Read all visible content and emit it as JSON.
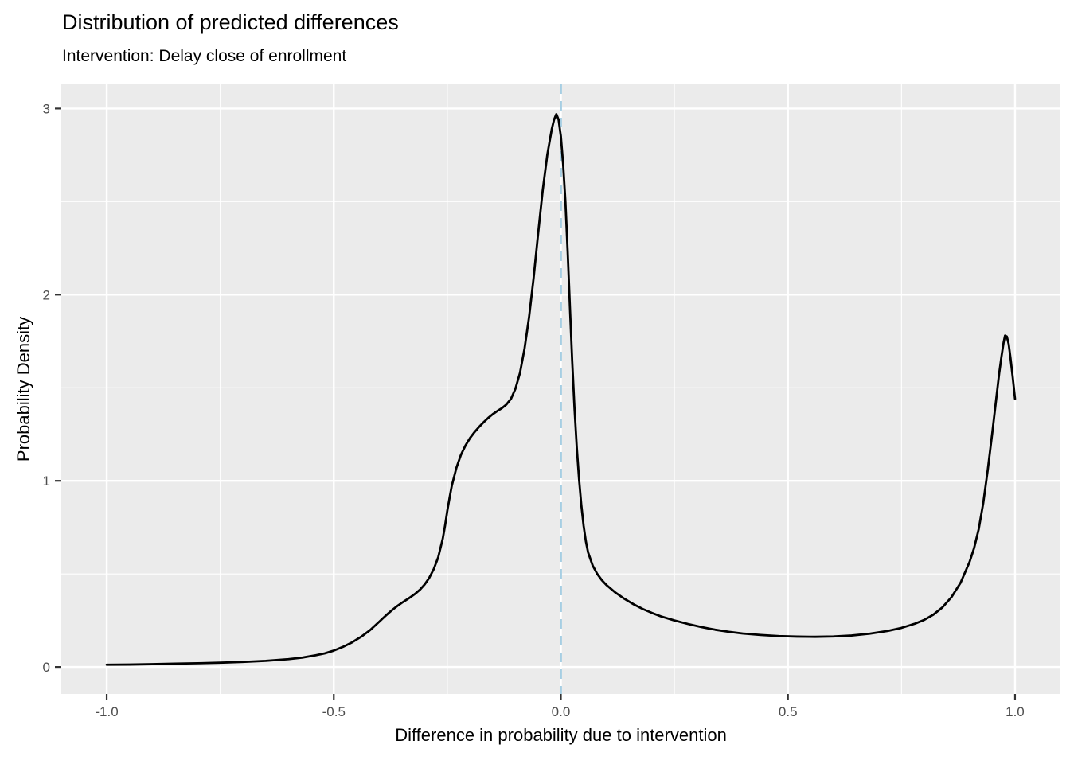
{
  "title": "Distribution of predicted differences",
  "subtitle": "Intervention: Delay close of enrollment",
  "colors": {
    "background": "#FFFFFF",
    "panel_bg": "#EBEBEB",
    "grid": "#FFFFFF",
    "curve": "#000000",
    "vline": "#A6CEE3",
    "tick_label": "#4D4D4D",
    "tick_mark": "#333333",
    "text": "#000000"
  },
  "chart_data": {
    "type": "line",
    "title": "Distribution of predicted differences",
    "subtitle": "Intervention: Delay close of enrollment",
    "xlabel": "Difference in probability due to intervention",
    "ylabel": "Probability Density",
    "xlim": [
      -1.1,
      1.1
    ],
    "ylim": [
      -0.145,
      3.13
    ],
    "x_ticks": [
      -1.0,
      -0.5,
      0.0,
      0.5,
      1.0
    ],
    "x_tick_labels": [
      "-1.0",
      "-0.5",
      "0.0",
      "0.5",
      "1.0"
    ],
    "y_ticks": [
      0,
      1,
      2,
      3
    ],
    "y_tick_labels": [
      "0",
      "1",
      "2",
      "3"
    ],
    "x_minor_gridlines": [
      -0.75,
      -0.25,
      0.25,
      0.75
    ],
    "y_minor_gridlines": [
      0.5,
      1.5,
      2.5
    ],
    "grid": true,
    "legend_position": "none",
    "reference_line": {
      "x": 0.0,
      "style": "dashed",
      "color": "#A6CEE3"
    },
    "series": [
      {
        "name": "predicted-difference-density",
        "color": "#000000",
        "points": [
          [
            -1.0,
            0.012
          ],
          [
            -0.95,
            0.013
          ],
          [
            -0.9,
            0.015
          ],
          [
            -0.85,
            0.018
          ],
          [
            -0.8,
            0.02
          ],
          [
            -0.75,
            0.023
          ],
          [
            -0.7,
            0.027
          ],
          [
            -0.65,
            0.033
          ],
          [
            -0.6,
            0.042
          ],
          [
            -0.57,
            0.05
          ],
          [
            -0.54,
            0.063
          ],
          [
            -0.52,
            0.073
          ],
          [
            -0.5,
            0.088
          ],
          [
            -0.48,
            0.108
          ],
          [
            -0.46,
            0.132
          ],
          [
            -0.44,
            0.162
          ],
          [
            -0.42,
            0.198
          ],
          [
            -0.4,
            0.243
          ],
          [
            -0.39,
            0.266
          ],
          [
            -0.38,
            0.288
          ],
          [
            -0.37,
            0.309
          ],
          [
            -0.36,
            0.328
          ],
          [
            -0.35,
            0.345
          ],
          [
            -0.34,
            0.361
          ],
          [
            -0.33,
            0.377
          ],
          [
            -0.32,
            0.395
          ],
          [
            -0.31,
            0.416
          ],
          [
            -0.3,
            0.443
          ],
          [
            -0.29,
            0.478
          ],
          [
            -0.28,
            0.525
          ],
          [
            -0.27,
            0.59
          ],
          [
            -0.26,
            0.69
          ],
          [
            -0.255,
            0.76
          ],
          [
            -0.25,
            0.84
          ],
          [
            -0.245,
            0.91
          ],
          [
            -0.24,
            0.975
          ],
          [
            -0.23,
            1.07
          ],
          [
            -0.22,
            1.14
          ],
          [
            -0.21,
            1.19
          ],
          [
            -0.2,
            1.23
          ],
          [
            -0.19,
            1.262
          ],
          [
            -0.18,
            1.29
          ],
          [
            -0.17,
            1.315
          ],
          [
            -0.16,
            1.338
          ],
          [
            -0.15,
            1.358
          ],
          [
            -0.14,
            1.375
          ],
          [
            -0.13,
            1.39
          ],
          [
            -0.12,
            1.41
          ],
          [
            -0.11,
            1.44
          ],
          [
            -0.1,
            1.495
          ],
          [
            -0.09,
            1.58
          ],
          [
            -0.08,
            1.71
          ],
          [
            -0.07,
            1.88
          ],
          [
            -0.06,
            2.09
          ],
          [
            -0.05,
            2.33
          ],
          [
            -0.04,
            2.56
          ],
          [
            -0.03,
            2.75
          ],
          [
            -0.02,
            2.89
          ],
          [
            -0.015,
            2.94
          ],
          [
            -0.01,
            2.97
          ],
          [
            -0.005,
            2.94
          ],
          [
            0.0,
            2.85
          ],
          [
            0.005,
            2.7
          ],
          [
            0.01,
            2.5
          ],
          [
            0.015,
            2.23
          ],
          [
            0.02,
            1.93
          ],
          [
            0.025,
            1.64
          ],
          [
            0.03,
            1.39
          ],
          [
            0.035,
            1.18
          ],
          [
            0.04,
            1.01
          ],
          [
            0.045,
            0.87
          ],
          [
            0.05,
            0.76
          ],
          [
            0.055,
            0.675
          ],
          [
            0.06,
            0.615
          ],
          [
            0.07,
            0.545
          ],
          [
            0.08,
            0.5
          ],
          [
            0.09,
            0.467
          ],
          [
            0.1,
            0.441
          ],
          [
            0.12,
            0.4
          ],
          [
            0.14,
            0.366
          ],
          [
            0.16,
            0.337
          ],
          [
            0.18,
            0.312
          ],
          [
            0.2,
            0.291
          ],
          [
            0.22,
            0.272
          ],
          [
            0.25,
            0.25
          ],
          [
            0.28,
            0.231
          ],
          [
            0.31,
            0.214
          ],
          [
            0.34,
            0.2
          ],
          [
            0.37,
            0.189
          ],
          [
            0.4,
            0.18
          ],
          [
            0.44,
            0.172
          ],
          [
            0.48,
            0.166
          ],
          [
            0.52,
            0.163
          ],
          [
            0.56,
            0.162
          ],
          [
            0.6,
            0.164
          ],
          [
            0.64,
            0.169
          ],
          [
            0.68,
            0.179
          ],
          [
            0.72,
            0.194
          ],
          [
            0.75,
            0.21
          ],
          [
            0.78,
            0.233
          ],
          [
            0.8,
            0.253
          ],
          [
            0.82,
            0.281
          ],
          [
            0.84,
            0.32
          ],
          [
            0.86,
            0.375
          ],
          [
            0.88,
            0.452
          ],
          [
            0.9,
            0.565
          ],
          [
            0.91,
            0.64
          ],
          [
            0.92,
            0.74
          ],
          [
            0.93,
            0.88
          ],
          [
            0.94,
            1.06
          ],
          [
            0.95,
            1.26
          ],
          [
            0.96,
            1.47
          ],
          [
            0.965,
            1.575
          ],
          [
            0.97,
            1.665
          ],
          [
            0.975,
            1.745
          ],
          [
            0.978,
            1.78
          ],
          [
            0.982,
            1.775
          ],
          [
            0.986,
            1.735
          ],
          [
            0.99,
            1.66
          ],
          [
            0.995,
            1.555
          ],
          [
            1.0,
            1.44
          ]
        ]
      }
    ],
    "style": {
      "major_grid_width": 2.4,
      "minor_grid_width": 1.1,
      "curve_width": 2.8,
      "vline_width": 2.8,
      "vline_dash": "12 9",
      "tick_length": 8,
      "tick_width": 2.2,
      "tick_font_size": 17
    }
  }
}
